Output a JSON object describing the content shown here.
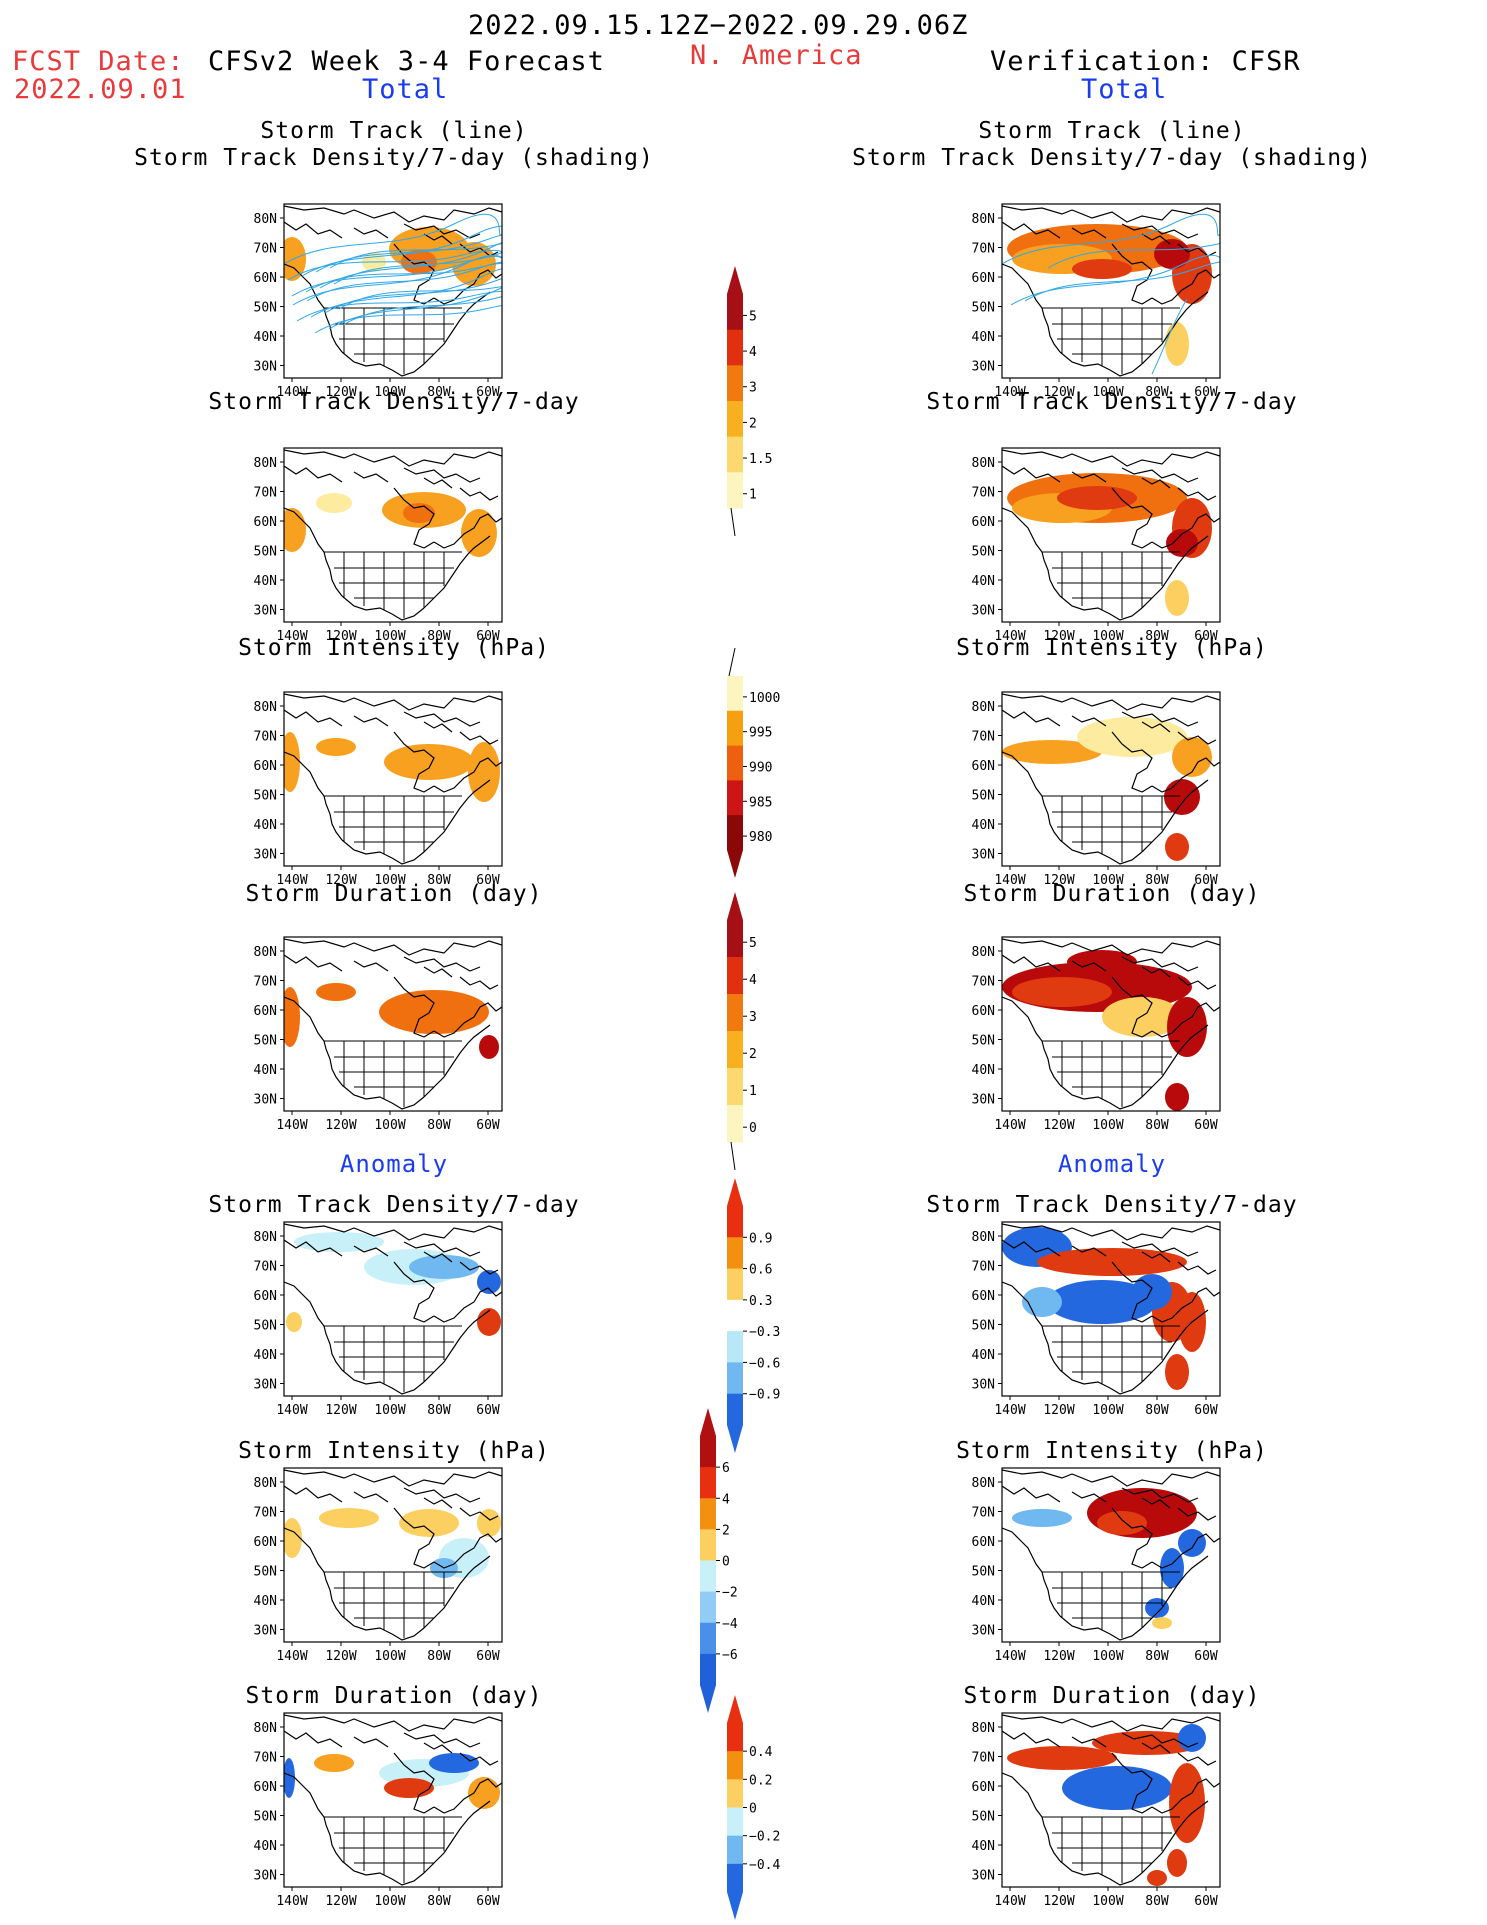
{
  "header": {
    "period": "2022.09.15.12Z−2022.09.29.06Z",
    "fcst_label": "FCST Date:",
    "fcst_date": "2022.09.01",
    "region": "N. America",
    "left_title": "CFSv2 Week 3-4 Forecast",
    "right_title": "Verification: CFSR",
    "total_label": "Total",
    "anomaly_label": "Anomaly"
  },
  "axes": {
    "lat_ticks": [
      "80N",
      "70N",
      "60N",
      "50N",
      "40N",
      "30N"
    ],
    "lon_ticks": [
      "140W",
      "120W",
      "100W",
      "80W",
      "60W"
    ]
  },
  "panel_titles": {
    "track_line": "Storm Track (line)",
    "track_density_shading": "Storm Track Density/7-day (shading)",
    "track_density": "Storm Track Density/7-day",
    "intensity": "Storm Intensity (hPa)",
    "duration": "Storm Duration (day)"
  },
  "colorbars": {
    "density_total": {
      "labels": [
        "5",
        "4",
        "3",
        "2",
        "1.5",
        "1"
      ],
      "colors": [
        "#a50f15",
        "#e03010",
        "#f07a10",
        "#f8b020",
        "#fbd870",
        "#fdf5c0"
      ]
    },
    "intensity_total": {
      "labels": [
        "1000",
        "995",
        "990",
        "985",
        "980"
      ],
      "colors": [
        "#fdf5c0",
        "#f6a010",
        "#ee6010",
        "#cc1515",
        "#8a0808"
      ]
    },
    "duration_total": {
      "labels": [
        "5",
        "4",
        "3",
        "2",
        "1",
        "0"
      ],
      "colors": [
        "#a50f15",
        "#e03010",
        "#f07a10",
        "#f8b020",
        "#fbd870",
        "#fdf5c0"
      ]
    },
    "density_anom": {
      "labels": [
        "0.9",
        "0.6",
        "0.3",
        "−0.3",
        "−0.6",
        "−0.9"
      ],
      "colors": [
        "#e83010",
        "#f39010",
        "#fbd060",
        "#ffffff",
        "#b8e8f8",
        "#70b8f0",
        "#2468e0"
      ]
    },
    "intensity_anom": {
      "labels": [
        "6",
        "4",
        "2",
        "0",
        "−2",
        "−4",
        "−6"
      ],
      "colors": [
        "#b01010",
        "#e83010",
        "#f39010",
        "#fbd060",
        "#c8f0f8",
        "#90ccf4",
        "#4a90e8",
        "#2060d8"
      ]
    },
    "duration_anom": {
      "labels": [
        "0.4",
        "0.2",
        "0",
        "−0.2",
        "−0.4"
      ],
      "colors": [
        "#e83010",
        "#f39010",
        "#fbd060",
        "#c8f0f8",
        "#70b8f0",
        "#2468e0"
      ]
    }
  }
}
